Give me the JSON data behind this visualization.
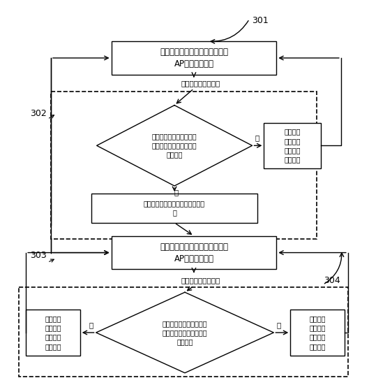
{
  "bg_color": "#ffffff",
  "fig_width": 5.29,
  "fig_height": 5.51,
  "dpi": 100,
  "label_301": "301",
  "label_302": "302",
  "label_303": "303",
  "label_304": "304",
  "box301_text": "中继器以初始周期为同步周期与\nAP进行时钟同步",
  "box303_text": "中继器以第二周期为同步周期与\nAP进行时钟同步",
  "box_mid_text": "将下一个预置时间作为当前预置时\n间",
  "box_right1_text": "将下一个\n预置时间\n作为当前\n预置时间",
  "box_left2_text": "将下一个\n预置时间\n作为当前\n预置时间",
  "box_right2_text": "将下一个\n预置时间\n作为当前\n预置时间",
  "diamond1_text": "当前预置时间内是否不存\n在大于第一允许误差的时\n钟偏移量",
  "diamond2_text": "当前预置时间内是否不存\n在大于第一允许误差的时\n钟偏移量",
  "trigger1_text": "当前预置时间届满时",
  "trigger2_text": "当前预置时间届满时",
  "yes_text": "是",
  "no_text": "否",
  "font_main": 8.5,
  "font_small": 7.5,
  "font_label": 9.0,
  "font_yn": 7.5
}
